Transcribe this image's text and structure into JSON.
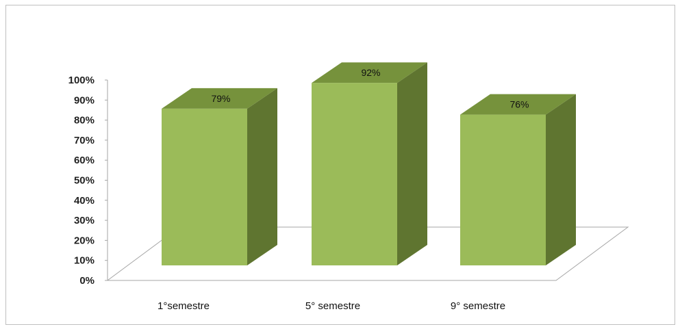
{
  "chart_data": {
    "type": "bar",
    "style": "3d-column",
    "categories": [
      "1°semestre",
      "5° semestre",
      "9° semestre"
    ],
    "values": [
      79,
      92,
      76
    ],
    "data_labels": [
      "79%",
      "92%",
      "76%"
    ],
    "y_ticks": [
      "0%",
      "10%",
      "20%",
      "30%",
      "40%",
      "50%",
      "60%",
      "70%",
      "80%",
      "90%",
      "100%"
    ],
    "ylim": [
      0,
      100
    ],
    "grid": false,
    "legend": "none",
    "colors": {
      "front": "#9bbb59",
      "top": "#76923c",
      "side": "#5f7530",
      "floor": "#ffffff",
      "floor_stroke": "#a6a6a6"
    }
  }
}
